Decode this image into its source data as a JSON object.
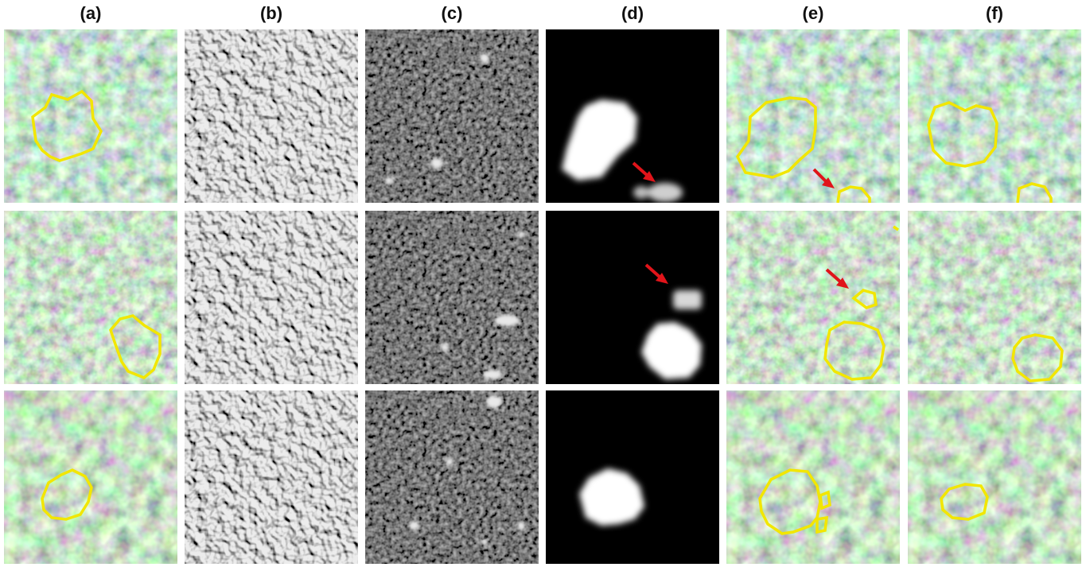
{
  "figure": {
    "column_labels": [
      "(a)",
      "(b)",
      "(c)",
      "(d)",
      "(e)",
      "(f)"
    ],
    "colors": {
      "outline": "#f2e600",
      "arrow": "#e0141a",
      "background": "#ffffff"
    },
    "panel_types": {
      "a": "aerial RGB canopy image with yellow crown outline",
      "b": "grayscale embossed/gradient texture",
      "c": "grayscale noise feature map",
      "d": "black background with white predicted mask",
      "e": "aerial RGB canopy image with yellow predicted outlines",
      "f": "aerial RGB canopy image with yellow crown outline"
    }
  }
}
